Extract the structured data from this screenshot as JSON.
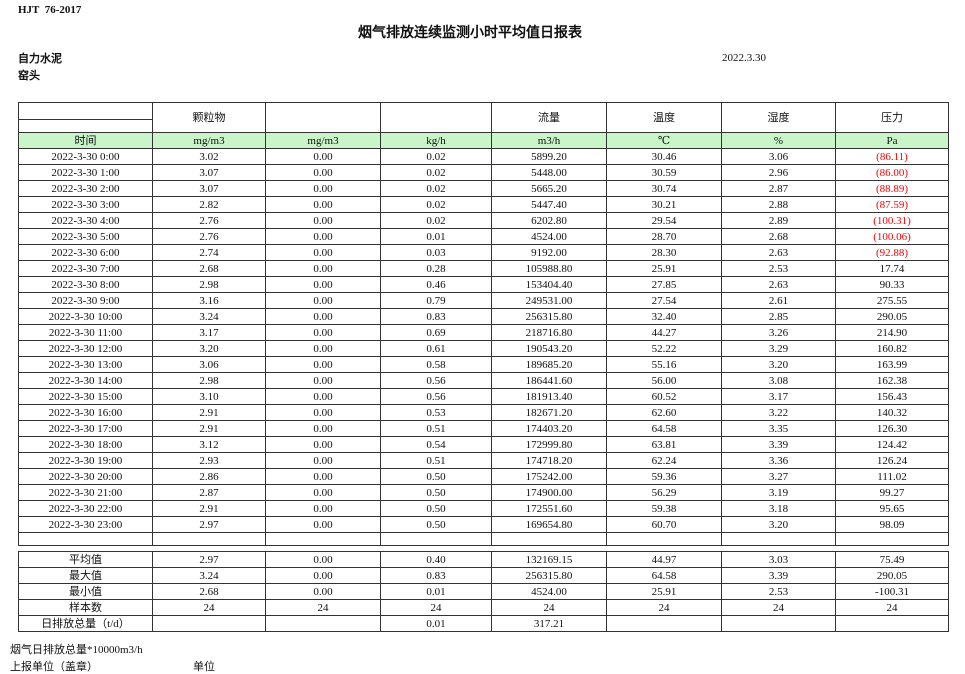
{
  "page": {
    "doc_code": "HJT  76-2017",
    "title": "烟气排放连续监测小时平均值日报表",
    "company": "自力水泥",
    "location": "窑头",
    "date": "2022.3.30"
  },
  "colors": {
    "header_row_green": "#c9f5c9",
    "negative_value_red": "#fe0000"
  },
  "table": {
    "group_headers": [
      "",
      "颗粒物",
      "",
      "",
      "流量",
      "温度",
      "湿度",
      "压力"
    ],
    "unit_row": [
      "时间",
      "mg/m3",
      "mg/m3",
      "kg/h",
      "m3/h",
      "℃",
      "%",
      "Pa"
    ],
    "rows": [
      [
        "2022-3-30 0:00",
        "3.02",
        "0.00",
        "0.02",
        "5899.20",
        "30.46",
        "3.06",
        "(86.11)"
      ],
      [
        "2022-3-30 1:00",
        "3.07",
        "0.00",
        "0.02",
        "5448.00",
        "30.59",
        "2.96",
        "(86.00)"
      ],
      [
        "2022-3-30 2:00",
        "3.07",
        "0.00",
        "0.02",
        "5665.20",
        "30.74",
        "2.87",
        "(88.89)"
      ],
      [
        "2022-3-30 3:00",
        "2.82",
        "0.00",
        "0.02",
        "5447.40",
        "30.21",
        "2.88",
        "(87.59)"
      ],
      [
        "2022-3-30 4:00",
        "2.76",
        "0.00",
        "0.02",
        "6202.80",
        "29.54",
        "2.89",
        "(100.31)"
      ],
      [
        "2022-3-30 5:00",
        "2.76",
        "0.00",
        "0.01",
        "4524.00",
        "28.70",
        "2.68",
        "(100.06)"
      ],
      [
        "2022-3-30 6:00",
        "2.74",
        "0.00",
        "0.03",
        "9192.00",
        "28.30",
        "2.63",
        "(92.88)"
      ],
      [
        "2022-3-30 7:00",
        "2.68",
        "0.00",
        "0.28",
        "105988.80",
        "25.91",
        "2.53",
        "17.74"
      ],
      [
        "2022-3-30 8:00",
        "2.98",
        "0.00",
        "0.46",
        "153404.40",
        "27.85",
        "2.63",
        "90.33"
      ],
      [
        "2022-3-30 9:00",
        "3.16",
        "0.00",
        "0.79",
        "249531.00",
        "27.54",
        "2.61",
        "275.55"
      ],
      [
        "2022-3-30 10:00",
        "3.24",
        "0.00",
        "0.83",
        "256315.80",
        "32.40",
        "2.85",
        "290.05"
      ],
      [
        "2022-3-30 11:00",
        "3.17",
        "0.00",
        "0.69",
        "218716.80",
        "44.27",
        "3.26",
        "214.90"
      ],
      [
        "2022-3-30 12:00",
        "3.20",
        "0.00",
        "0.61",
        "190543.20",
        "52.22",
        "3.29",
        "160.82"
      ],
      [
        "2022-3-30 13:00",
        "3.06",
        "0.00",
        "0.58",
        "189685.20",
        "55.16",
        "3.20",
        "163.99"
      ],
      [
        "2022-3-30 14:00",
        "2.98",
        "0.00",
        "0.56",
        "186441.60",
        "56.00",
        "3.08",
        "162.38"
      ],
      [
        "2022-3-30 15:00",
        "3.10",
        "0.00",
        "0.56",
        "181913.40",
        "60.52",
        "3.17",
        "156.43"
      ],
      [
        "2022-3-30 16:00",
        "2.91",
        "0.00",
        "0.53",
        "182671.20",
        "62.60",
        "3.22",
        "140.32"
      ],
      [
        "2022-3-30 17:00",
        "2.91",
        "0.00",
        "0.51",
        "174403.20",
        "64.58",
        "3.35",
        "126.30"
      ],
      [
        "2022-3-30 18:00",
        "3.12",
        "0.00",
        "0.54",
        "172999.80",
        "63.81",
        "3.39",
        "124.42"
      ],
      [
        "2022-3-30 19:00",
        "2.93",
        "0.00",
        "0.51",
        "174718.20",
        "62.24",
        "3.36",
        "126.24"
      ],
      [
        "2022-3-30 20:00",
        "2.86",
        "0.00",
        "0.50",
        "175242.00",
        "59.36",
        "3.27",
        "111.02"
      ],
      [
        "2022-3-30 21:00",
        "2.87",
        "0.00",
        "0.50",
        "174900.00",
        "56.29",
        "3.19",
        "99.27"
      ],
      [
        "2022-3-30 22:00",
        "2.91",
        "0.00",
        "0.50",
        "172551.60",
        "59.38",
        "3.18",
        "95.65"
      ],
      [
        "2022-3-30 23:00",
        "2.97",
        "0.00",
        "0.50",
        "169654.80",
        "60.70",
        "3.20",
        "98.09"
      ]
    ],
    "summary_rows": [
      [
        "平均值",
        "2.97",
        "0.00",
        "0.40",
        "132169.15",
        "44.97",
        "3.03",
        "75.49"
      ],
      [
        "最大值",
        "3.24",
        "0.00",
        "0.83",
        "256315.80",
        "64.58",
        "3.39",
        "290.05"
      ],
      [
        "最小值",
        "2.68",
        "0.00",
        "0.01",
        "4524.00",
        "25.91",
        "2.53",
        "-100.31"
      ],
      [
        "样本数",
        "24",
        "24",
        "24",
        "24",
        "24",
        "24",
        "24"
      ],
      [
        "日排放总量（t/d）",
        "",
        "",
        "0.01",
        "317.21",
        "",
        "",
        ""
      ]
    ]
  },
  "footer": {
    "note_total_flow": "烟气日排放总量*10000m3/h",
    "note_report_unit": "上报单位（盖章）",
    "note_unit": "单位"
  }
}
